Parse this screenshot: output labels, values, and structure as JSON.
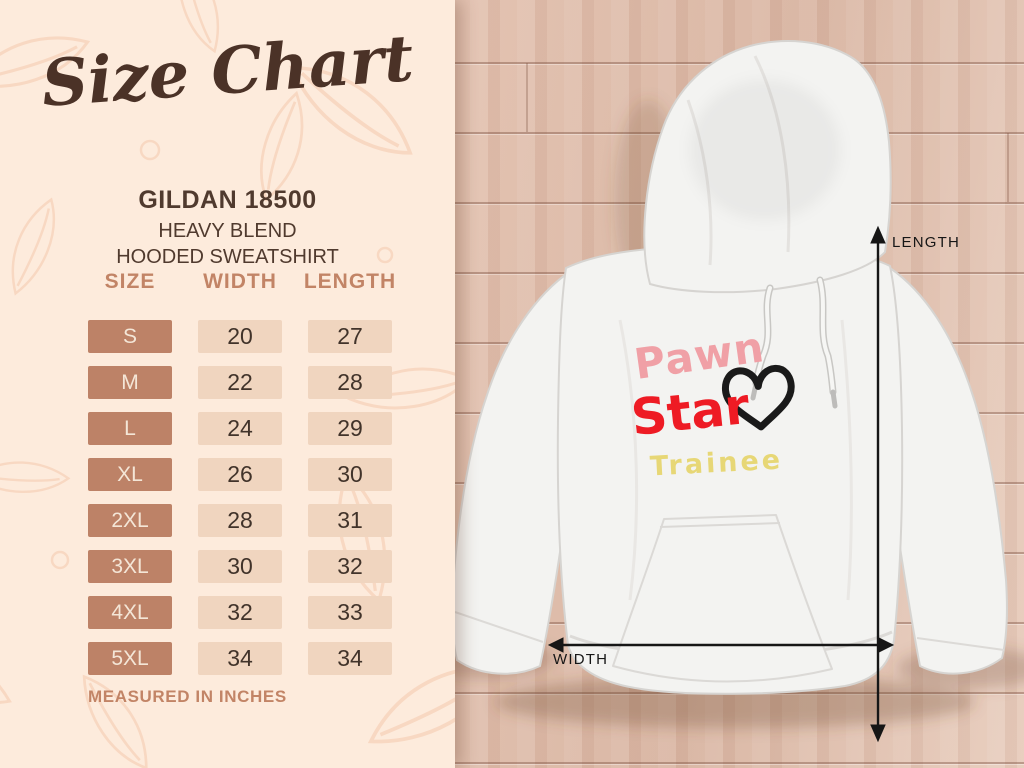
{
  "panel": {
    "title": "Size Chart",
    "product_name": "GILDAN 18500",
    "product_line1": "HEAVY BLEND",
    "product_line2": "HOODED SWEATSHIRT",
    "footnote": "MEASURED IN INCHES"
  },
  "chart_data": {
    "type": "table",
    "title": "Size Chart",
    "subtitle": "GILDAN 18500 HEAVY BLEND HOODED SWEATSHIRT",
    "columns": [
      "SIZE",
      "WIDTH",
      "LENGTH"
    ],
    "rows": [
      {
        "size": "S",
        "width": "20",
        "length": "27"
      },
      {
        "size": "M",
        "width": "22",
        "length": "28"
      },
      {
        "size": "L",
        "width": "24",
        "length": "29"
      },
      {
        "size": "XL",
        "width": "26",
        "length": "30"
      },
      {
        "size": "2XL",
        "width": "28",
        "length": "31"
      },
      {
        "size": "3XL",
        "width": "30",
        "length": "32"
      },
      {
        "size": "4XL",
        "width": "32",
        "length": "33"
      },
      {
        "size": "5XL",
        "width": "34",
        "length": "34"
      }
    ],
    "units": "inches",
    "note": "MEASURED IN INCHES"
  },
  "mockup": {
    "design": {
      "line1": "Pawn",
      "line2": "Star",
      "line3": "Trainee",
      "heart_icon": "heart-outline"
    },
    "labels": {
      "length": "LENGTH",
      "width": "WIDTH"
    }
  },
  "colors": {
    "panel_bg": "#fdebdc",
    "leaf_outline": "#f7d2ba",
    "title_brown": "#4b3227",
    "text_brown": "#503a2e",
    "accent_terracotta": "#c28466",
    "size_cell_bg": "#bd8267",
    "size_cell_text": "#f4e6d7",
    "value_cell_bg": "#f0d5bf",
    "value_cell_text": "#41332a",
    "wood_base": "#e3c2b1",
    "hoodie_white": "#f3f3f1",
    "design_pink": "#f0a0a6",
    "design_red": "#ee1b24",
    "design_yellow": "#e7d776",
    "heart_black": "#1a1a1a",
    "arrow_black": "#161616"
  }
}
